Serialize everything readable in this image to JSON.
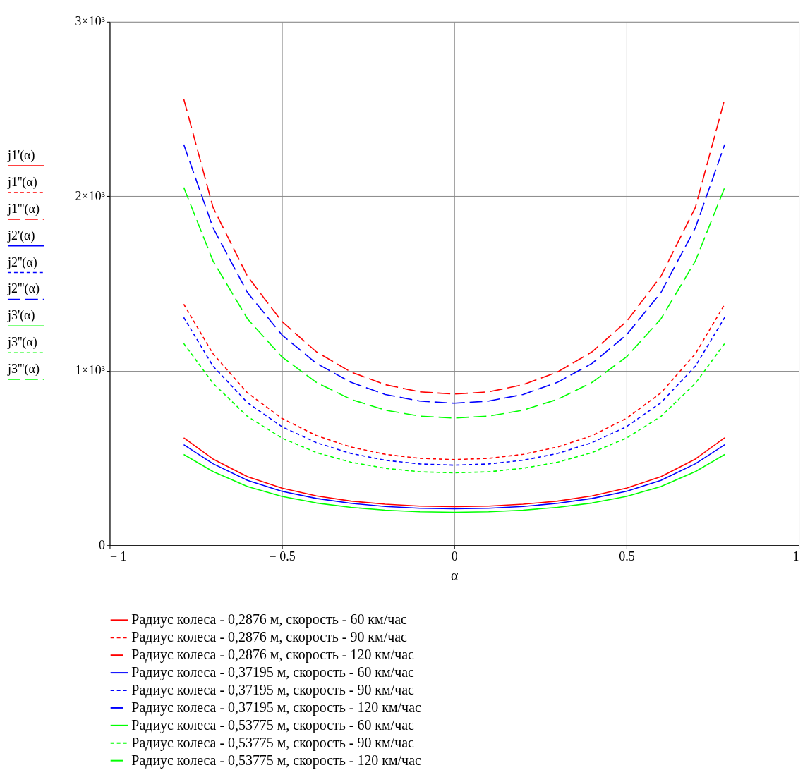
{
  "chart_data": {
    "type": "line",
    "xlabel": "α",
    "x": [
      -0.785,
      -0.7,
      -0.6,
      -0.5,
      -0.4,
      -0.3,
      -0.2,
      -0.1,
      0,
      0.1,
      0.2,
      0.3,
      0.4,
      0.5,
      0.6,
      0.7,
      0.785
    ],
    "xlim": [
      -1,
      1
    ],
    "xticks": [
      {
        "value": -1,
        "label": "− 1"
      },
      {
        "value": -0.5,
        "label": "− 0.5"
      },
      0,
      0.5,
      1
    ],
    "ylim": [
      0,
      3000
    ],
    "yticks": [
      0,
      {
        "value": 1000,
        "label": "1×10³"
      },
      {
        "value": 2000,
        "label": "2×10³"
      },
      {
        "value": 3000,
        "label": "3×10³"
      }
    ],
    "grid": true,
    "legend": "bottom",
    "marker": "none",
    "annotations": [
      "j1'(α)",
      "j1''(α)",
      "j1'''(α)",
      "j2'(α)",
      "j2''(α)",
      "j2'''(α)",
      "j3'(α)",
      "j3''(α)",
      "j3'''(α)"
    ],
    "series": [
      {
        "name": "Радиус колеса - 0,2876 м, скорость - 60 км/час",
        "color": "#ff0000",
        "line_style": "solid",
        "values": [
          616,
          494,
          393,
          327,
          283,
          253,
          235,
          224,
          221,
          224,
          235,
          253,
          283,
          327,
          393,
          494,
          616
        ]
      },
      {
        "name": "Радиус колеса - 0,2876 м, скорость - 90 км/час",
        "color": "#ff0000",
        "line_style": "dotted",
        "values": [
          1381,
          1097,
          873,
          727,
          628,
          563,
          521,
          498,
          491,
          498,
          521,
          563,
          628,
          727,
          873,
          1097,
          1381
        ]
      },
      {
        "name": "Радиус колеса - 0,2876 м, скорость - 120 км/час",
        "color": "#ff0000",
        "line_style": "dashed",
        "values": [
          2557,
          1936,
          1541,
          1282,
          1108,
          993,
          920,
          879,
          866,
          879,
          920,
          993,
          1108,
          1282,
          1541,
          1936,
          2557
        ]
      },
      {
        "name": "Радиус колеса - 0,37195 м, скорость - 60 км/час",
        "color": "#0000ff",
        "line_style": "solid",
        "values": [
          576,
          467,
          372,
          309,
          268,
          240,
          222,
          212,
          209,
          212,
          222,
          240,
          268,
          309,
          372,
          467,
          576
        ]
      },
      {
        "name": "Радиус колеса - 0,37195 м, скорость - 90 км/час",
        "color": "#0000ff",
        "line_style": "dotted",
        "values": [
          1305,
          1026,
          817,
          679,
          588,
          526,
          487,
          466,
          459,
          466,
          487,
          526,
          588,
          679,
          817,
          1026,
          1305
        ]
      },
      {
        "name": "Радиус колеса - 0,37195 м, скорость - 120 км/час",
        "color": "#0000ff",
        "line_style": "dashed",
        "values": [
          2296,
          1819,
          1448,
          1205,
          1042,
          934,
          864,
          826,
          814,
          826,
          864,
          934,
          1042,
          1205,
          1448,
          1819,
          2296
        ]
      },
      {
        "name": "Радиус колеса - 0,53775 м, скорость - 60 км/час",
        "color": "#00ff00",
        "line_style": "solid",
        "values": [
          520,
          422,
          336,
          280,
          242,
          217,
          201,
          192,
          189,
          192,
          201,
          217,
          242,
          280,
          336,
          422,
          520
        ]
      },
      {
        "name": "Радиус колеса - 0,53775 м, скорость - 90 км/час",
        "color": "#00ff00",
        "line_style": "dotted",
        "values": [
          1156,
          928,
          738,
          614,
          531,
          476,
          441,
          421,
          415,
          421,
          441,
          476,
          531,
          614,
          738,
          928,
          1156
        ]
      },
      {
        "name": "Радиус колеса - 0,53775 м, скорость - 120 км/час",
        "color": "#00ff00",
        "line_style": "dashed",
        "values": [
          2050,
          1629,
          1297,
          1079,
          933,
          836,
          774,
          740,
          729,
          740,
          774,
          836,
          933,
          1079,
          1297,
          1629,
          2050
        ]
      }
    ]
  }
}
